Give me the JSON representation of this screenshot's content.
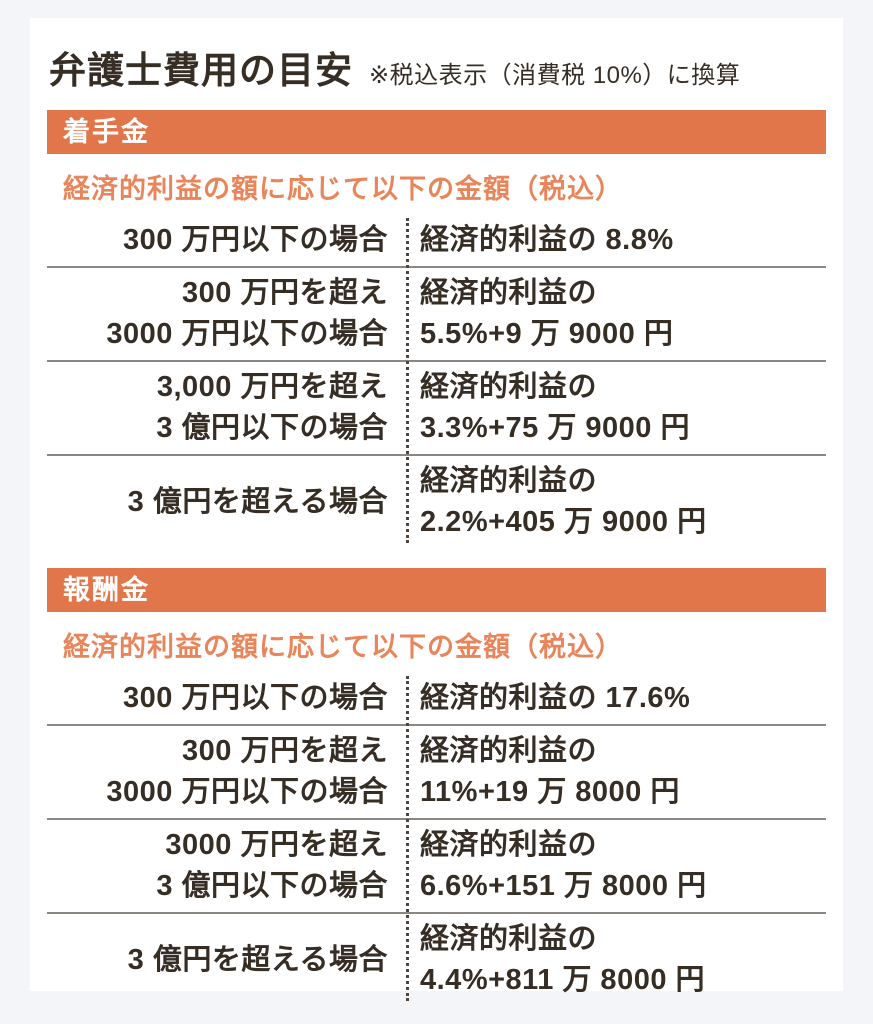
{
  "page": {
    "title": "弁護士費用の目安",
    "note": "※税込表示（消費税 10%）に換算"
  },
  "colors": {
    "page_background": "#F4F5F8",
    "card_background": "#FFFFFF",
    "accent_bar": "#E2764B",
    "accent_subtitle": "#E8855A",
    "row_rule": "#8A8782",
    "column_divider_dots": "#4E463E",
    "text": "#362D25"
  },
  "sections": [
    {
      "header": "着手金",
      "subtitle": "経済的利益の額に応じて以下の金額（税込）",
      "rows": [
        {
          "condition": [
            "300 万円以下の場合"
          ],
          "fee": [
            "経済的利益の 8.8%"
          ]
        },
        {
          "condition": [
            "300 万円を超え",
            "3000 万円以下の場合"
          ],
          "fee": [
            "経済的利益の",
            "5.5%+9 万 9000 円"
          ]
        },
        {
          "condition": [
            "3,000 万円を超え",
            "3 億円以下の場合"
          ],
          "fee": [
            "経済的利益の",
            "3.3%+75 万 9000 円"
          ]
        },
        {
          "condition": [
            "3 億円を超える場合"
          ],
          "fee": [
            "経済的利益の",
            "2.2%+405 万 9000 円"
          ]
        }
      ]
    },
    {
      "header": "報酬金",
      "subtitle": "経済的利益の額に応じて以下の金額（税込）",
      "rows": [
        {
          "condition": [
            "300 万円以下の場合"
          ],
          "fee": [
            "経済的利益の 17.6%"
          ]
        },
        {
          "condition": [
            "300 万円を超え",
            "3000 万円以下の場合"
          ],
          "fee": [
            "経済的利益の",
            "11%+19 万 8000 円"
          ]
        },
        {
          "condition": [
            "3000 万円を超え",
            "3 億円以下の場合"
          ],
          "fee": [
            "経済的利益の",
            "6.6%+151 万 8000 円"
          ]
        },
        {
          "condition": [
            "3 億円を超える場合"
          ],
          "fee": [
            "経済的利益の",
            "4.4%+811 万 8000 円"
          ]
        }
      ]
    }
  ]
}
